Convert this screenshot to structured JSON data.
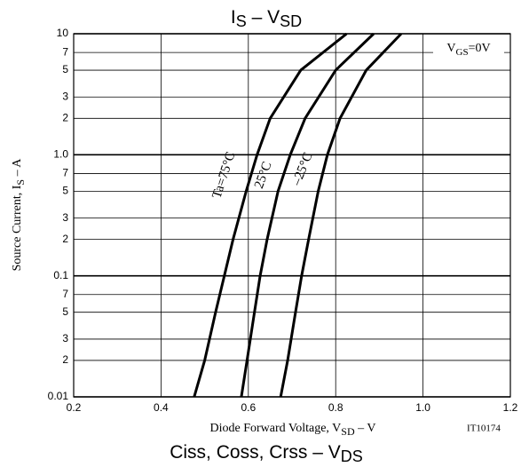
{
  "chart_data": {
    "type": "line",
    "title": [
      "I",
      "S",
      " – V",
      "SD"
    ],
    "next_title": [
      "Ciss, Coss, Crss – V",
      "DS"
    ],
    "y_label": [
      "Source Current, I",
      "S",
      " – A"
    ],
    "x_label": [
      "Diode Forward Voltage, V",
      "SD",
      " – V"
    ],
    "annotation": [
      "V",
      "GS",
      "=0V"
    ],
    "code": "IT10174",
    "log_y": true,
    "grid": true,
    "color": "#000000",
    "xlim": [
      0.2,
      1.2
    ],
    "xticks": [
      0.2,
      0.4,
      0.6,
      0.8,
      {
        "value": 1,
        "label": "1.0"
      },
      1.2
    ],
    "ylim": [
      0.01,
      10
    ],
    "yticks": [
      {
        "value": 0.01,
        "label": "0.01"
      },
      {
        "value": 0.02,
        "label": "2"
      },
      {
        "value": 0.03,
        "label": "3"
      },
      {
        "value": 0.05,
        "label": "5"
      },
      {
        "value": 0.07,
        "label": "7"
      },
      0.1,
      {
        "value": 0.2,
        "label": "2"
      },
      {
        "value": 0.3,
        "label": "3"
      },
      {
        "value": 0.5,
        "label": "5"
      },
      {
        "value": 0.7,
        "label": "7"
      },
      {
        "value": 1,
        "label": "1.0"
      },
      2,
      3,
      5,
      7,
      10
    ],
    "series": [
      {
        "name": "Ta=75°C",
        "color": "#000000",
        "x": [
          0.476,
          0.5,
          0.525,
          0.545,
          0.565,
          0.595,
          0.62,
          0.65,
          0.72,
          0.825
        ],
        "values": [
          0.01,
          0.02,
          0.05,
          0.1,
          0.2,
          0.5,
          1,
          2,
          5,
          10
        ]
      },
      {
        "name": "25°C",
        "color": "#000000",
        "x": [
          0.584,
          0.597,
          0.614,
          0.627,
          0.643,
          0.668,
          0.696,
          0.73,
          0.8,
          0.887
        ],
        "values": [
          0.01,
          0.02,
          0.05,
          0.1,
          0.2,
          0.5,
          1,
          2,
          5,
          10
        ]
      },
      {
        "name": "–25°C",
        "color": "#000000",
        "x": [
          0.674,
          0.69,
          0.708,
          0.722,
          0.738,
          0.76,
          0.781,
          0.81,
          0.87,
          0.95
        ],
        "values": [
          0.01,
          0.02,
          0.05,
          0.1,
          0.2,
          0.5,
          1,
          2,
          5,
          10
        ]
      }
    ]
  }
}
